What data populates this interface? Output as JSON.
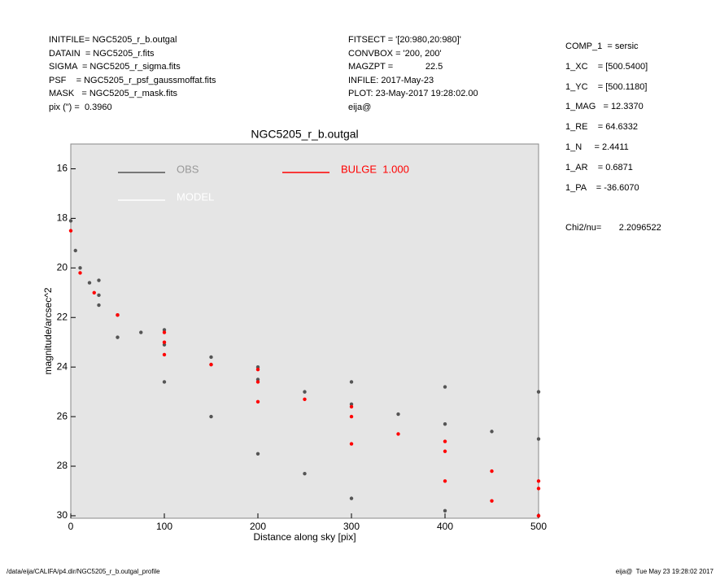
{
  "header": {
    "left": [
      "INITFILE= NGC5205_r_b.outgal",
      "DATAIN  = NGC5205_r.fits",
      "SIGMA  = NGC5205_r_sigma.fits",
      "PSF    = NGC5205_r_psf_gaussmoffat.fits",
      "MASK   = NGC5205_r_mask.fits",
      "pix (\") =  0.3960"
    ],
    "middle": [
      "FITSECT = '[20:980,20:980]'",
      "CONVBOX = '200, 200'",
      "MAGZPT =             22.5",
      "INFILE: 2017-May-23",
      "PLOT: 23-May-2017 19:28:02.00",
      "eija@"
    ],
    "right": [
      "COMP_1  = sersic",
      "1_XC    = [500.5400]",
      "1_YC    = [500.1180]",
      "1_MAG   = 12.3370",
      "1_RE    = 64.6332",
      "1_N     = 2.4411",
      "1_AR    = 0.6871",
      "1_PA    = -36.6070",
      "",
      "Chi2/nu=       2.2096522"
    ]
  },
  "footer": {
    "left": "/data/eija/CALIFA/p4.dir/NGC5205_r_b.outgal_profile",
    "right": "eija@  Tue May 23 19:28:02 2017"
  },
  "chart_data": {
    "type": "scatter",
    "title": "NGC5205_r_b.outgal",
    "x_label": "Distance along sky [pix]",
    "y_label": "magnitude/arcsec^2",
    "xlim": [
      0,
      500
    ],
    "ylim": [
      30.1,
      15
    ],
    "xticks": [
      0,
      100,
      200,
      300,
      400,
      500
    ],
    "yticks": [
      16,
      18,
      20,
      22,
      24,
      26,
      28,
      30
    ],
    "series": [
      {
        "name": "OBS",
        "color": "#555555",
        "x": [
          0,
          5,
          10,
          20,
          30,
          50,
          75,
          100,
          150,
          200,
          250,
          300,
          350,
          400,
          450,
          500,
          30,
          100,
          150,
          200,
          300,
          400,
          500,
          30,
          50,
          100,
          150,
          200,
          250,
          300,
          400,
          500
        ],
        "values": [
          18.1,
          19.3,
          20.0,
          20.6,
          21.1,
          21.9,
          22.6,
          23.1,
          23.9,
          24.5,
          25.0,
          25.5,
          25.9,
          26.3,
          26.6,
          26.9,
          20.5,
          22.5,
          23.6,
          24.0,
          24.6,
          24.8,
          25.0,
          21.5,
          22.8,
          24.6,
          26.0,
          27.5,
          28.3,
          29.3,
          29.8,
          30.0
        ]
      },
      {
        "name": "BULGE  1.000",
        "color": "#ff0000",
        "x": [
          0,
          10,
          25,
          50,
          100,
          150,
          200,
          250,
          300,
          350,
          400,
          450,
          500,
          100,
          200,
          300,
          400,
          450,
          500,
          100,
          200,
          300,
          400,
          500
        ],
        "values": [
          18.5,
          20.2,
          21.0,
          21.9,
          23.0,
          23.9,
          24.6,
          25.3,
          26.0,
          26.7,
          27.4,
          28.2,
          28.9,
          23.5,
          25.4,
          27.1,
          28.6,
          29.4,
          30.0,
          22.6,
          24.1,
          25.6,
          27.0,
          28.6
        ]
      },
      {
        "name": "MODEL",
        "color": "#ffffff",
        "x": [],
        "values": []
      }
    ]
  }
}
